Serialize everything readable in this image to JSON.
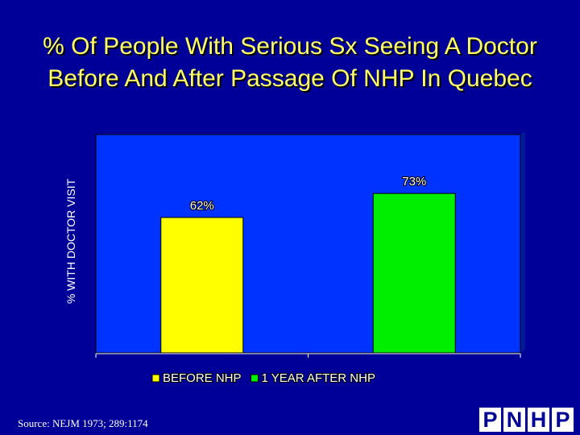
{
  "title_lines": [
    "% Of People With Serious Sx Seeing A Doctor",
    "Before And After Passage Of NHP In Quebec"
  ],
  "chart_data": {
    "type": "bar",
    "categories": [
      "BEFORE NHP",
      "1 YEAR AFTER NHP"
    ],
    "values": [
      62,
      73
    ],
    "value_labels": [
      "62%",
      "73%"
    ],
    "ylabel": "% WITH DOCTOR VISIT",
    "ylim": [
      0,
      100
    ],
    "grid": false,
    "legend_position": "bottom",
    "colors": [
      "#ffff00",
      "#00ee00"
    ],
    "plot_background": "#0033ff"
  },
  "source": "Source: NEJM 1973; 289:1174",
  "logo_letters": [
    "P",
    "N",
    "H",
    "P"
  ]
}
